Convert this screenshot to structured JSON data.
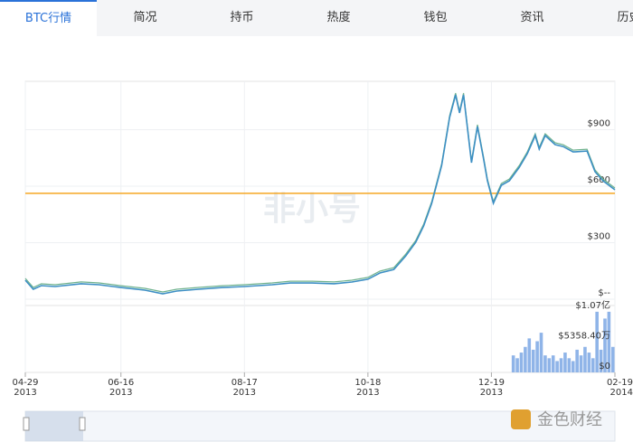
{
  "tabs": [
    "BTC行情",
    "简况",
    "持币",
    "热度",
    "钱包",
    "资讯",
    "历史"
  ],
  "watermarks": [
    "非小号",
    "金色财经"
  ],
  "chart_data": {
    "type": "line",
    "x": [
      "2013-04-29",
      "2013-05-03",
      "2013-05-07",
      "2013-05-14",
      "2013-05-27",
      "2013-06-05",
      "2013-06-16",
      "2013-06-28",
      "2013-07-07",
      "2013-07-14",
      "2013-07-25",
      "2013-08-06",
      "2013-08-17",
      "2013-08-31",
      "2013-09-09",
      "2013-09-20",
      "2013-10-01",
      "2013-10-10",
      "2013-10-18",
      "2013-10-24",
      "2013-10-31",
      "2013-11-06",
      "2013-11-11",
      "2013-11-15",
      "2013-11-19",
      "2013-11-24",
      "2013-11-28",
      "2013-12-01",
      "2013-12-03",
      "2013-12-05",
      "2013-12-09",
      "2013-12-12",
      "2013-12-15",
      "2013-12-17",
      "2013-12-20",
      "2013-12-24",
      "2013-12-28",
      "2014-01-02",
      "2014-01-06",
      "2014-01-10",
      "2014-01-12",
      "2014-01-15",
      "2014-01-20",
      "2014-01-24",
      "2014-01-29",
      "2014-02-05",
      "2014-02-09",
      "2014-02-13",
      "2014-02-19"
    ],
    "series": [
      {
        "color": "#3d8fc4",
        "values": [
          101,
          53,
          72,
          67,
          82,
          77,
          62,
          48,
          29,
          43,
          53,
          62,
          67,
          77,
          86,
          86,
          82,
          91,
          106,
          139,
          158,
          230,
          302,
          389,
          509,
          710,
          965,
          1085,
          989,
          1085,
          725,
          917,
          749,
          629,
          509,
          605,
          629,
          701,
          773,
          869,
          797,
          869,
          821,
          811,
          782,
          787,
          677,
          629,
          581
        ]
      }
    ],
    "xlim": [
      "2013-04-29",
      "2014-02-19"
    ],
    "xticks": [
      {
        "value": "2013-04-29",
        "label": "04-29\n2013"
      },
      {
        "value": "2013-06-16",
        "label": "06-16\n2013"
      },
      {
        "value": "2013-08-17",
        "label": "08-17\n2013"
      },
      {
        "value": "2013-10-18",
        "label": "10-18\n2013"
      },
      {
        "value": "2013-12-19",
        "label": "12-19\n2013"
      },
      {
        "value": "2014-02-19",
        "label": "02-19\n2014"
      }
    ],
    "ylim": [
      0,
      1157
    ],
    "yticks": [
      {
        "value": 0,
        "label": "$--"
      },
      {
        "value": 300,
        "label": "$300"
      },
      {
        "value": 600,
        "label": "$600"
      },
      {
        "value": 900,
        "label": "$900"
      }
    ],
    "reference_line": {
      "value": 562,
      "color": "#f5a623"
    },
    "grid": true,
    "volume": {
      "color": "#8fb4e8",
      "x": [
        "2013-12-30",
        "2014-01-01",
        "2014-01-03",
        "2014-01-05",
        "2014-01-07",
        "2014-01-09",
        "2014-01-11",
        "2014-01-13",
        "2014-01-15",
        "2014-01-17",
        "2014-01-19",
        "2014-01-21",
        "2014-01-23",
        "2014-01-25",
        "2014-01-27",
        "2014-01-29",
        "2014-01-31",
        "2014-02-02",
        "2014-02-04",
        "2014-02-06",
        "2014-02-08",
        "2014-02-10",
        "2014-02-12",
        "2014-02-14",
        "2014-02-16",
        "2014-02-18"
      ],
      "values": [
        30000000,
        25000000,
        35000000,
        45000000,
        60000000,
        40000000,
        55000000,
        70000000,
        30000000,
        25000000,
        30000000,
        20000000,
        25000000,
        35000000,
        25000000,
        20000000,
        40000000,
        30000000,
        45000000,
        35000000,
        25000000,
        107000000,
        40000000,
        95000000,
        107000000,
        45000000
      ],
      "ylim": [
        0,
        118000000
      ],
      "yticks": [
        {
          "value": 0,
          "label": "$0"
        },
        {
          "value": 53584000,
          "label": "$5358.40万"
        },
        {
          "value": 107000000,
          "label": "$1.07亿"
        }
      ]
    }
  }
}
